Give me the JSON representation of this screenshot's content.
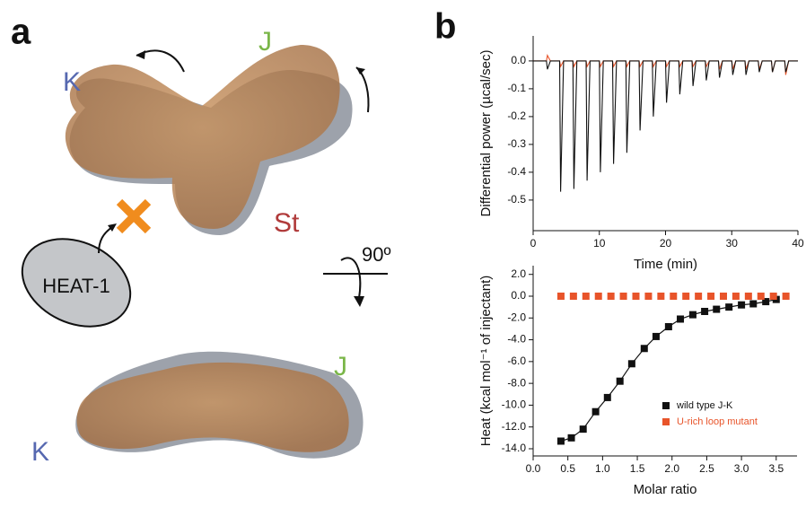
{
  "panel_a": {
    "label": "a",
    "top": {
      "k": "K",
      "j": "J",
      "st": "St"
    },
    "heat": "HEAT-1",
    "rotation": "90º",
    "bottom": {
      "k": "K",
      "j": "J"
    }
  },
  "panel_b": {
    "label": "b"
  },
  "chart_data": [
    {
      "type": "line",
      "xlabel": "Time (min)",
      "ylabel": "Differential power (µcal/sec)",
      "xlim": [
        0,
        40
      ],
      "ylim": [
        -0.61,
        0.09
      ],
      "xticks": [
        0,
        10,
        20,
        30,
        40
      ],
      "yticks": [
        {
          "value": 0,
          "label": "0.0"
        },
        -0.1,
        -0.2,
        -0.3,
        -0.4,
        -0.5
      ],
      "series": [
        {
          "color": "#e8542a",
          "x": [
            0,
            2,
            2.15,
            2.6,
            4,
            4.15,
            4.6,
            6,
            6.15,
            6.6,
            8,
            8.15,
            8.6,
            10,
            10.15,
            10.6,
            12,
            12.15,
            12.6,
            14,
            14.15,
            14.6,
            16,
            16.15,
            16.6,
            18,
            18.15,
            18.6,
            20,
            20.15,
            20.6,
            22,
            22.15,
            22.6,
            24,
            24.15,
            24.6,
            26,
            26.15,
            26.6,
            28,
            28.15,
            28.6,
            30,
            30.15,
            30.6,
            32,
            32.15,
            32.6,
            34,
            34.15,
            34.6,
            36,
            36.15,
            36.6,
            38,
            38.15,
            38.6,
            40
          ],
          "values": [
            0,
            0,
            0.02,
            0,
            0,
            -0.02,
            0,
            0,
            -0.02,
            0,
            0,
            -0.02,
            0,
            0,
            -0.02,
            0,
            0,
            -0.02,
            0,
            0,
            -0.02,
            0,
            0,
            -0.02,
            0,
            0,
            -0.02,
            0,
            0,
            -0.02,
            0,
            0,
            -0.02,
            0,
            0,
            -0.02,
            0,
            0,
            -0.02,
            0,
            0,
            -0.03,
            0,
            0,
            -0.03,
            0,
            0,
            -0.03,
            0,
            0,
            -0.03,
            0,
            0,
            -0.04,
            0,
            0,
            -0.05,
            0,
            0
          ]
        },
        {
          "color": "#111111",
          "x": [
            0,
            2,
            2.15,
            2.6,
            4,
            4.15,
            4.6,
            6,
            6.15,
            6.6,
            8,
            8.15,
            8.6,
            10,
            10.15,
            10.6,
            12,
            12.15,
            12.6,
            14,
            14.15,
            14.6,
            16,
            16.15,
            16.6,
            18,
            18.15,
            18.6,
            20,
            20.15,
            20.6,
            22,
            22.15,
            22.6,
            24,
            24.15,
            24.6,
            26,
            26.15,
            26.6,
            28,
            28.15,
            28.6,
            30,
            30.15,
            30.6,
            32,
            32.15,
            32.6,
            34,
            34.15,
            34.6,
            36,
            36.15,
            36.6,
            38,
            38.15,
            38.6,
            40
          ],
          "values": [
            0,
            0,
            -0.03,
            0,
            0,
            -0.47,
            0,
            0,
            -0.46,
            0,
            0,
            -0.43,
            0,
            0,
            -0.4,
            0,
            0,
            -0.37,
            0,
            0,
            -0.33,
            0,
            0,
            -0.25,
            0,
            0,
            -0.2,
            0,
            0,
            -0.15,
            0,
            0,
            -0.12,
            0,
            0,
            -0.09,
            0,
            0,
            -0.07,
            0,
            0,
            -0.06,
            0,
            0,
            -0.05,
            0,
            0,
            -0.05,
            0,
            0,
            -0.04,
            0,
            0,
            -0.04,
            0,
            0,
            -0.04,
            0,
            0
          ]
        }
      ]
    },
    {
      "type": "scatter",
      "xlabel": "Molar ratio",
      "ylabel": "Heat (kcal mol⁻¹ of injectant)",
      "xlim": [
        0,
        3.8
      ],
      "ylim": [
        -14.66,
        2.8
      ],
      "xticks": [
        {
          "value": 0,
          "label": "0.0"
        },
        0.5,
        {
          "value": 1,
          "label": "1.0"
        },
        1.5,
        {
          "value": 2,
          "label": "2.0"
        },
        2.5,
        {
          "value": 3,
          "label": "3.0"
        },
        3.5
      ],
      "yticks": [
        {
          "value": 2,
          "label": "2.0"
        },
        {
          "value": 0,
          "label": "0.0"
        },
        {
          "value": -2,
          "label": "-2.0"
        },
        {
          "value": -4,
          "label": "-4.0"
        },
        {
          "value": -6,
          "label": "-6.0"
        },
        {
          "value": -8,
          "label": "-8.0"
        },
        {
          "value": -10,
          "label": "-10.0"
        },
        {
          "value": -12,
          "label": "-12.0"
        },
        {
          "value": -14,
          "label": "-14.0"
        }
      ],
      "legend": "lower right",
      "series": [
        {
          "name": "wild type J-K",
          "color": "#111111",
          "line": true,
          "x": [
            0.4,
            0.55,
            0.72,
            0.9,
            1.07,
            1.25,
            1.42,
            1.6,
            1.77,
            1.95,
            2.12,
            2.3,
            2.47,
            2.64,
            2.82,
            3.0,
            3.17,
            3.35,
            3.5
          ],
          "values": [
            -13.3,
            -13.0,
            -12.2,
            -10.6,
            -9.3,
            -7.8,
            -6.2,
            -4.8,
            -3.7,
            -2.8,
            -2.1,
            -1.7,
            -1.4,
            -1.2,
            -1.0,
            -0.8,
            -0.7,
            -0.5,
            -0.3
          ]
        },
        {
          "name": "U-rich loop mutant",
          "color": "#e8542a",
          "line": false,
          "x": [
            0.4,
            0.58,
            0.76,
            0.94,
            1.12,
            1.3,
            1.48,
            1.66,
            1.84,
            2.02,
            2.2,
            2.38,
            2.56,
            2.74,
            2.92,
            3.1,
            3.28,
            3.46,
            3.64
          ],
          "values": [
            0,
            0,
            0,
            0,
            0,
            0,
            0,
            0,
            0,
            0,
            0,
            0,
            0,
            0,
            0,
            0,
            0,
            0,
            0
          ]
        }
      ]
    }
  ]
}
